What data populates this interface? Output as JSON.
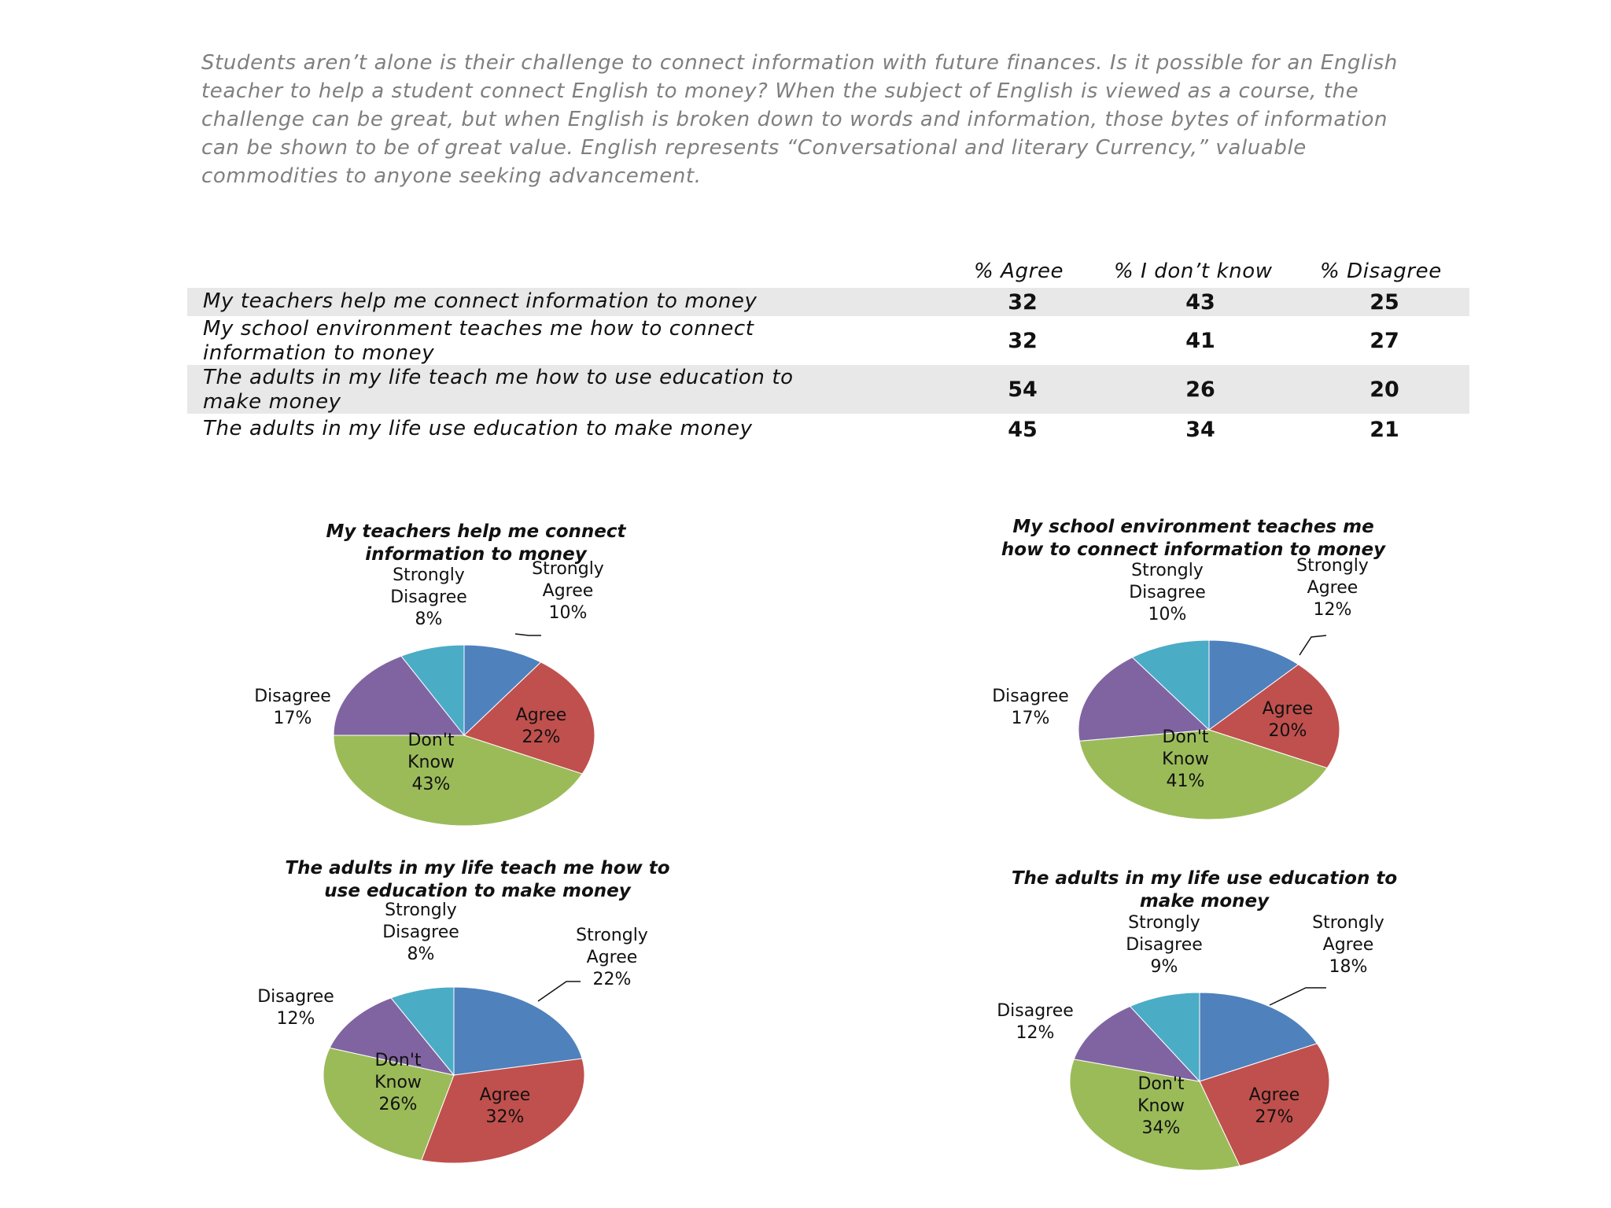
{
  "intro_text": "Students aren’t alone is their challenge to connect information with future finances. Is it possible for an English teacher to help a student connect English to money? When the subject of English is viewed as a course, the challenge can be great, but when English is broken down to words and information, those bytes of information can be shown to be of great value. English represents “Conversational and literary Currency,” valuable commodities to anyone seeking advancement.",
  "table": {
    "headers": [
      "% Agree",
      "% I don’t know",
      "% Disagree"
    ],
    "rows": [
      {
        "statement": "My teachers help me connect information to money",
        "agree": "32",
        "dont_know": "43",
        "disagree": "25"
      },
      {
        "statement": "My school environment teaches me how to connect information to money",
        "agree": "32",
        "dont_know": "41",
        "disagree": "27"
      },
      {
        "statement": "The adults in my life teach me how to use education to make money",
        "agree": "54",
        "dont_know": "26",
        "disagree": "20"
      },
      {
        "statement": "The adults in my life use education to make money",
        "agree": "45",
        "dont_know": "34",
        "disagree": "21"
      }
    ]
  },
  "colors": {
    "strongly_agree": "#4F81BD",
    "agree": "#C0504D",
    "dont_know": "#9BBB59",
    "disagree": "#8064A2",
    "strongly_disagree": "#4BACC6"
  },
  "chart_data": [
    {
      "type": "pie",
      "title": [
        "My teachers help me connect",
        "information to money"
      ],
      "slices": [
        {
          "key": "strongly_agree",
          "label": [
            "Strongly",
            "Agree"
          ],
          "value": 10,
          "text": "10%"
        },
        {
          "key": "agree",
          "label": [
            "Agree"
          ],
          "value": 22,
          "text": "22%"
        },
        {
          "key": "dont_know",
          "label": [
            "Don't",
            "Know"
          ],
          "value": 43,
          "text": "43%"
        },
        {
          "key": "disagree",
          "label": [
            "Disagree"
          ],
          "value": 17,
          "text": "17%"
        },
        {
          "key": "strongly_disagree",
          "label": [
            "Strongly",
            "Disagree"
          ],
          "value": 8,
          "text": "8%"
        }
      ]
    },
    {
      "type": "pie",
      "title": [
        "My school environment teaches me",
        "how to connect information to money"
      ],
      "slices": [
        {
          "key": "strongly_agree",
          "label": [
            "Strongly",
            "Agree"
          ],
          "value": 12,
          "text": "12%"
        },
        {
          "key": "agree",
          "label": [
            "Agree"
          ],
          "value": 20,
          "text": "20%"
        },
        {
          "key": "dont_know",
          "label": [
            "Don't",
            "Know"
          ],
          "value": 41,
          "text": "41%"
        },
        {
          "key": "disagree",
          "label": [
            "Disagree"
          ],
          "value": 17,
          "text": "17%"
        },
        {
          "key": "strongly_disagree",
          "label": [
            "Strongly",
            "Disagree"
          ],
          "value": 10,
          "text": "10%"
        }
      ]
    },
    {
      "type": "pie",
      "title": [
        "The adults in my life teach me how to",
        "use education to make money"
      ],
      "slices": [
        {
          "key": "strongly_agree",
          "label": [
            "Strongly",
            "Agree"
          ],
          "value": 22,
          "text": "22%"
        },
        {
          "key": "agree",
          "label": [
            "Agree"
          ],
          "value": 32,
          "text": "32%"
        },
        {
          "key": "dont_know",
          "label": [
            "Don't",
            "Know"
          ],
          "value": 26,
          "text": "26%"
        },
        {
          "key": "disagree",
          "label": [
            "Disagree"
          ],
          "value": 12,
          "text": "12%"
        },
        {
          "key": "strongly_disagree",
          "label": [
            "Strongly",
            "Disagree"
          ],
          "value": 8,
          "text": "8%"
        }
      ]
    },
    {
      "type": "pie",
      "title": [
        "The adults in my life use education to",
        "make money"
      ],
      "slices": [
        {
          "key": "strongly_agree",
          "label": [
            "Strongly",
            "Agree"
          ],
          "value": 18,
          "text": "18%"
        },
        {
          "key": "agree",
          "label": [
            "Agree"
          ],
          "value": 27,
          "text": "27%"
        },
        {
          "key": "dont_know",
          "label": [
            "Don't",
            "Know"
          ],
          "value": 34,
          "text": "34%"
        },
        {
          "key": "disagree",
          "label": [
            "Disagree"
          ],
          "value": 12,
          "text": "12%"
        },
        {
          "key": "strongly_disagree",
          "label": [
            "Strongly",
            "Disagree"
          ],
          "value": 9,
          "text": "9%"
        }
      ]
    }
  ]
}
